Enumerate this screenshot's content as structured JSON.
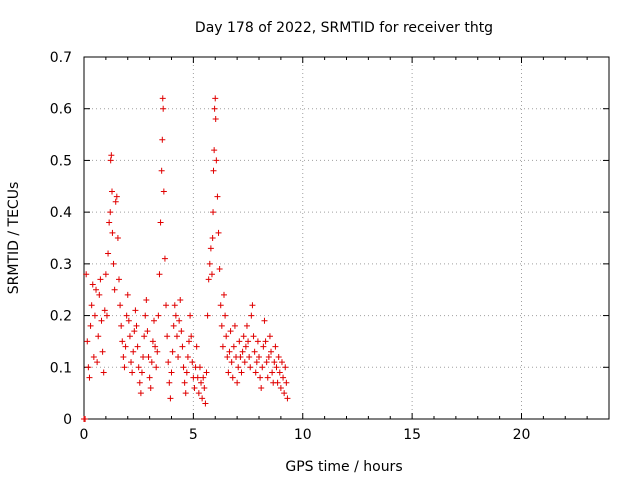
{
  "chart_data": {
    "type": "scatter",
    "title": "Day 178 of 2022, SRMTID for receiver thtg",
    "xlabel": "GPS time / hours",
    "ylabel": "SRMTID / TECUs",
    "xlim": [
      0,
      24
    ],
    "ylim": [
      0,
      0.7
    ],
    "x_ticks": [
      0,
      5,
      10,
      15,
      20
    ],
    "x_tick_labels": [
      "0",
      "5",
      "10",
      "15",
      "20"
    ],
    "y_ticks": [
      0,
      0.1,
      0.2,
      0.3,
      0.4,
      0.5,
      0.6,
      0.7
    ],
    "y_tick_labels": [
      "0",
      "0.1",
      "0.2",
      "0.3",
      "0.4",
      "0.5",
      "0.6",
      "0.7"
    ],
    "grid": true,
    "marker": "+",
    "marker_color": "#e00000",
    "series": [
      {
        "name": "SRMTID",
        "points": [
          [
            0.0,
            0.0
          ],
          [
            0.05,
            0.0
          ],
          [
            0.1,
            0.28
          ],
          [
            0.15,
            0.15
          ],
          [
            0.2,
            0.1
          ],
          [
            0.25,
            0.08
          ],
          [
            0.3,
            0.18
          ],
          [
            0.35,
            0.22
          ],
          [
            0.4,
            0.26
          ],
          [
            0.45,
            0.12
          ],
          [
            0.5,
            0.2
          ],
          [
            0.55,
            0.25
          ],
          [
            0.6,
            0.11
          ],
          [
            0.65,
            0.16
          ],
          [
            0.7,
            0.24
          ],
          [
            0.75,
            0.27
          ],
          [
            0.8,
            0.19
          ],
          [
            0.85,
            0.13
          ],
          [
            0.9,
            0.09
          ],
          [
            0.95,
            0.21
          ],
          [
            1.0,
            0.28
          ],
          [
            1.05,
            0.2
          ],
          [
            1.1,
            0.32
          ],
          [
            1.15,
            0.38
          ],
          [
            1.2,
            0.4
          ],
          [
            1.22,
            0.5
          ],
          [
            1.25,
            0.51
          ],
          [
            1.28,
            0.44
          ],
          [
            1.3,
            0.36
          ],
          [
            1.35,
            0.3
          ],
          [
            1.4,
            0.25
          ],
          [
            1.45,
            0.42
          ],
          [
            1.5,
            0.43
          ],
          [
            1.55,
            0.35
          ],
          [
            1.6,
            0.27
          ],
          [
            1.65,
            0.22
          ],
          [
            1.7,
            0.18
          ],
          [
            1.75,
            0.15
          ],
          [
            1.8,
            0.12
          ],
          [
            1.85,
            0.1
          ],
          [
            1.9,
            0.14
          ],
          [
            1.95,
            0.2
          ],
          [
            2.0,
            0.24
          ],
          [
            2.05,
            0.19
          ],
          [
            2.1,
            0.16
          ],
          [
            2.15,
            0.11
          ],
          [
            2.2,
            0.09
          ],
          [
            2.25,
            0.13
          ],
          [
            2.3,
            0.17
          ],
          [
            2.35,
            0.21
          ],
          [
            2.4,
            0.18
          ],
          [
            2.45,
            0.14
          ],
          [
            2.5,
            0.1
          ],
          [
            2.55,
            0.07
          ],
          [
            2.6,
            0.05
          ],
          [
            2.65,
            0.09
          ],
          [
            2.7,
            0.12
          ],
          [
            2.75,
            0.16
          ],
          [
            2.8,
            0.2
          ],
          [
            2.85,
            0.23
          ],
          [
            2.9,
            0.17
          ],
          [
            2.95,
            0.12
          ],
          [
            3.0,
            0.08
          ],
          [
            3.05,
            0.06
          ],
          [
            3.1,
            0.11
          ],
          [
            3.15,
            0.15
          ],
          [
            3.2,
            0.19
          ],
          [
            3.25,
            0.14
          ],
          [
            3.3,
            0.1
          ],
          [
            3.35,
            0.13
          ],
          [
            3.4,
            0.2
          ],
          [
            3.45,
            0.28
          ],
          [
            3.5,
            0.38
          ],
          [
            3.55,
            0.48
          ],
          [
            3.58,
            0.54
          ],
          [
            3.6,
            0.62
          ],
          [
            3.62,
            0.6
          ],
          [
            3.65,
            0.44
          ],
          [
            3.7,
            0.31
          ],
          [
            3.75,
            0.22
          ],
          [
            3.8,
            0.16
          ],
          [
            3.85,
            0.11
          ],
          [
            3.9,
            0.07
          ],
          [
            3.95,
            0.04
          ],
          [
            4.0,
            0.09
          ],
          [
            4.05,
            0.13
          ],
          [
            4.1,
            0.18
          ],
          [
            4.15,
            0.22
          ],
          [
            4.2,
            0.2
          ],
          [
            4.25,
            0.16
          ],
          [
            4.3,
            0.12
          ],
          [
            4.35,
            0.19
          ],
          [
            4.4,
            0.23
          ],
          [
            4.45,
            0.17
          ],
          [
            4.5,
            0.14
          ],
          [
            4.55,
            0.1
          ],
          [
            4.6,
            0.07
          ],
          [
            4.65,
            0.05
          ],
          [
            4.7,
            0.09
          ],
          [
            4.75,
            0.12
          ],
          [
            4.8,
            0.15
          ],
          [
            4.85,
            0.2
          ],
          [
            4.9,
            0.16
          ],
          [
            4.95,
            0.11
          ],
          [
            5.0,
            0.08
          ],
          [
            5.05,
            0.06
          ],
          [
            5.1,
            0.1
          ],
          [
            5.15,
            0.14
          ],
          [
            5.2,
            0.08
          ],
          [
            5.25,
            0.05
          ],
          [
            5.3,
            0.1
          ],
          [
            5.35,
            0.07
          ],
          [
            5.4,
            0.04
          ],
          [
            5.45,
            0.08
          ],
          [
            5.5,
            0.06
          ],
          [
            5.55,
            0.03
          ],
          [
            5.6,
            0.09
          ],
          [
            5.65,
            0.2
          ],
          [
            5.7,
            0.27
          ],
          [
            5.75,
            0.3
          ],
          [
            5.8,
            0.33
          ],
          [
            5.85,
            0.28
          ],
          [
            5.88,
            0.35
          ],
          [
            5.9,
            0.4
          ],
          [
            5.92,
            0.48
          ],
          [
            5.95,
            0.52
          ],
          [
            5.97,
            0.6
          ],
          [
            6.0,
            0.62
          ],
          [
            6.02,
            0.58
          ],
          [
            6.05,
            0.5
          ],
          [
            6.1,
            0.43
          ],
          [
            6.15,
            0.36
          ],
          [
            6.2,
            0.29
          ],
          [
            6.25,
            0.22
          ],
          [
            6.3,
            0.18
          ],
          [
            6.35,
            0.14
          ],
          [
            6.4,
            0.24
          ],
          [
            6.45,
            0.2
          ],
          [
            6.5,
            0.16
          ],
          [
            6.55,
            0.12
          ],
          [
            6.6,
            0.09
          ],
          [
            6.65,
            0.13
          ],
          [
            6.7,
            0.17
          ],
          [
            6.75,
            0.11
          ],
          [
            6.8,
            0.08
          ],
          [
            6.85,
            0.14
          ],
          [
            6.9,
            0.18
          ],
          [
            6.95,
            0.12
          ],
          [
            7.0,
            0.07
          ],
          [
            7.05,
            0.1
          ],
          [
            7.1,
            0.15
          ],
          [
            7.15,
            0.12
          ],
          [
            7.2,
            0.09
          ],
          [
            7.25,
            0.13
          ],
          [
            7.3,
            0.16
          ],
          [
            7.35,
            0.11
          ],
          [
            7.4,
            0.14
          ],
          [
            7.45,
            0.18
          ],
          [
            7.5,
            0.15
          ],
          [
            7.55,
            0.12
          ],
          [
            7.6,
            0.1
          ],
          [
            7.65,
            0.2
          ],
          [
            7.7,
            0.22
          ],
          [
            7.75,
            0.16
          ],
          [
            7.8,
            0.13
          ],
          [
            7.85,
            0.09
          ],
          [
            7.9,
            0.11
          ],
          [
            7.95,
            0.15
          ],
          [
            8.0,
            0.12
          ],
          [
            8.05,
            0.08
          ],
          [
            8.1,
            0.06
          ],
          [
            8.15,
            0.1
          ],
          [
            8.2,
            0.14
          ],
          [
            8.25,
            0.19
          ],
          [
            8.3,
            0.15
          ],
          [
            8.35,
            0.11
          ],
          [
            8.4,
            0.08
          ],
          [
            8.45,
            0.12
          ],
          [
            8.5,
            0.16
          ],
          [
            8.55,
            0.13
          ],
          [
            8.6,
            0.09
          ],
          [
            8.65,
            0.07
          ],
          [
            8.7,
            0.11
          ],
          [
            8.75,
            0.14
          ],
          [
            8.8,
            0.1
          ],
          [
            8.85,
            0.07
          ],
          [
            8.9,
            0.12
          ],
          [
            8.95,
            0.09
          ],
          [
            9.0,
            0.06
          ],
          [
            9.05,
            0.11
          ],
          [
            9.1,
            0.08
          ],
          [
            9.15,
            0.05
          ],
          [
            9.2,
            0.1
          ],
          [
            9.25,
            0.07
          ],
          [
            9.3,
            0.04
          ]
        ]
      }
    ]
  }
}
